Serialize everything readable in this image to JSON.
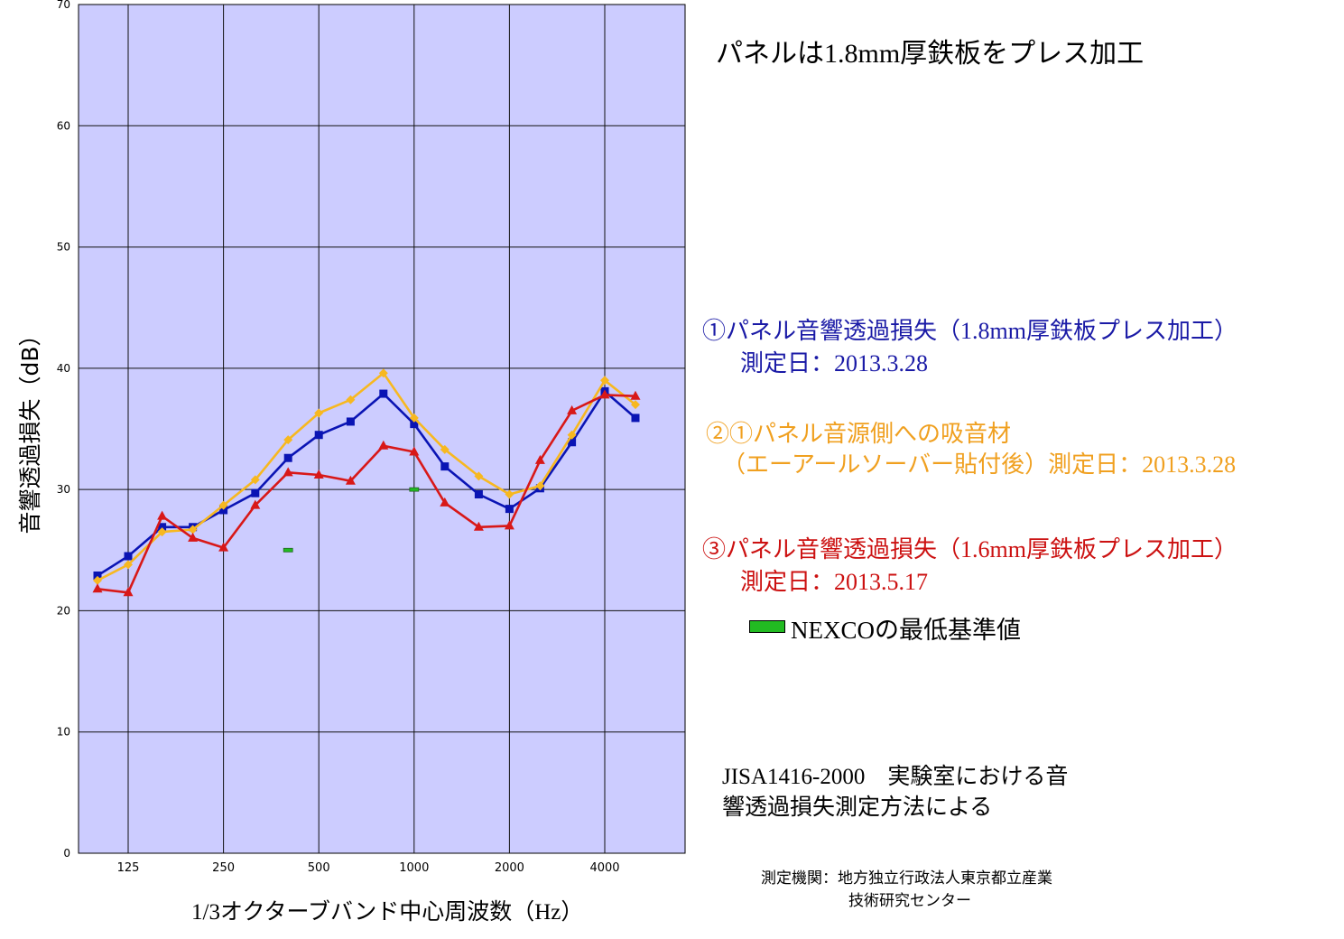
{
  "chart_data": {
    "type": "line",
    "ylabel": "音響透過損失（dB）",
    "xlabel": "1/3オクターブバンド中心周波数（Hz）",
    "ylim": [
      0,
      70
    ],
    "y_ticks": [
      0,
      10,
      20,
      30,
      40,
      50,
      60,
      70
    ],
    "x_scale": "log",
    "x": [
      100,
      125,
      160,
      200,
      250,
      315,
      400,
      500,
      630,
      800,
      1000,
      1250,
      1600,
      2000,
      2500,
      3150,
      4000,
      5000
    ],
    "x_tick_labels": [
      "125",
      "250",
      "500",
      "1000",
      "2000",
      "4000"
    ],
    "x_tick_values": [
      125,
      250,
      500,
      1000,
      2000,
      4000
    ],
    "grid": true,
    "plot_bg": "#ccccff",
    "series": [
      {
        "name": "①パネル音響透過損失（1.8mm厚鉄板プレス加工）",
        "color": "#0a14b4",
        "marker": "square",
        "values": [
          22.9,
          24.5,
          26.9,
          26.9,
          28.3,
          29.7,
          32.6,
          34.5,
          35.6,
          37.9,
          35.4,
          31.9,
          29.6,
          28.4,
          30.1,
          33.9,
          38.1,
          35.9
        ]
      },
      {
        "name": "②①パネル音源側への吸音材（エーアールソーバー貼付後）",
        "color": "#f7b820",
        "marker": "diamond",
        "values": [
          22.5,
          23.8,
          26.5,
          26.7,
          28.7,
          30.8,
          34.1,
          36.3,
          37.4,
          39.6,
          35.9,
          33.3,
          31.1,
          29.6,
          30.3,
          34.5,
          39.0,
          37.0
        ]
      },
      {
        "name": "③パネル音響透過損失（1.6mm厚鉄板プレス加工）",
        "color": "#d81818",
        "marker": "triangle",
        "values": [
          21.8,
          21.5,
          27.8,
          26.0,
          25.2,
          28.7,
          31.4,
          31.2,
          30.7,
          33.6,
          33.1,
          28.9,
          26.9,
          27.0,
          32.4,
          36.5,
          37.8,
          37.7
        ]
      }
    ],
    "reference": {
      "name": "NEXCOの最低基準値",
      "color": "#22bb22",
      "points": [
        {
          "x": 400,
          "y": 25
        },
        {
          "x": 1000,
          "y": 30
        }
      ]
    }
  },
  "title_note": "パネルは1.8mm厚鉄板をプレス加工",
  "legend": {
    "s1_line1": "①パネル音響透過損失（1.8mm厚鉄板プレス加工）",
    "s1_line2": "測定日：2013.3.28",
    "s2_line1": "②①パネル音源側への吸音材",
    "s2_line2": "（エーアールソーバー貼付後）測定日：2013.3.28",
    "s3_line1": "③パネル音響透過損失（1.6mm厚鉄板プレス加工）",
    "s3_line2": "測定日：2013.5.17",
    "nexco_label": "NEXCOの最低基準値",
    "nexco_color": "#22bb22"
  },
  "method": {
    "line1": "JISA1416-2000　実験室における音",
    "line2": "響透過損失測定方法による"
  },
  "organization": {
    "line1": "測定機関：地方独立行政法人東京都立産業",
    "line2": "技術研究センター"
  }
}
